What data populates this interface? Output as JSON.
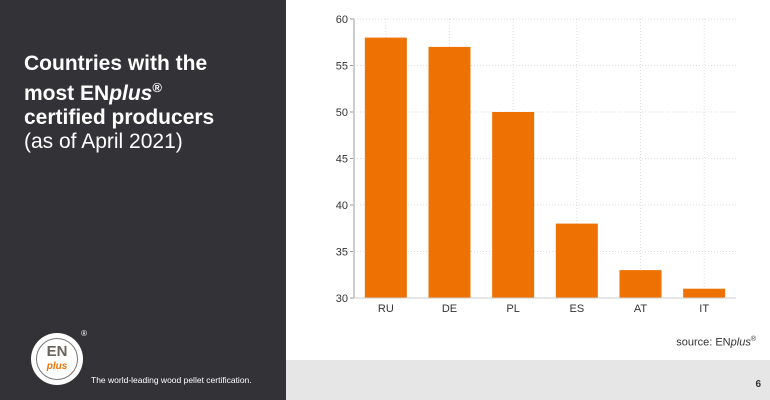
{
  "title": {
    "line1": "Countries with the",
    "line2_prefix": "most EN",
    "line2_brand": "plus",
    "line2_reg": "®",
    "line3": "certified producers",
    "subtitle": "(as of April 2021)"
  },
  "logo": {
    "text_en": "EN",
    "text_plus": "plus",
    "reg": "®"
  },
  "tagline": "The world-leading wood pellet certification.",
  "source": {
    "prefix": "source: EN",
    "brand": "plus",
    "reg": "®"
  },
  "page_number": "6",
  "colors": {
    "bar": "#ee7203",
    "panel": "#333337"
  },
  "chart_data": {
    "type": "bar",
    "title": "Countries with the most ENplus® certified producers (as of April 2021)",
    "categories": [
      "RU",
      "DE",
      "PL",
      "ES",
      "AT",
      "IT"
    ],
    "values": [
      58,
      57,
      50,
      38,
      33,
      31
    ],
    "ylim": [
      30,
      60
    ],
    "yticks": [
      30,
      35,
      40,
      45,
      50,
      55,
      60
    ],
    "xlabel": "",
    "ylabel": "",
    "grid": true
  }
}
